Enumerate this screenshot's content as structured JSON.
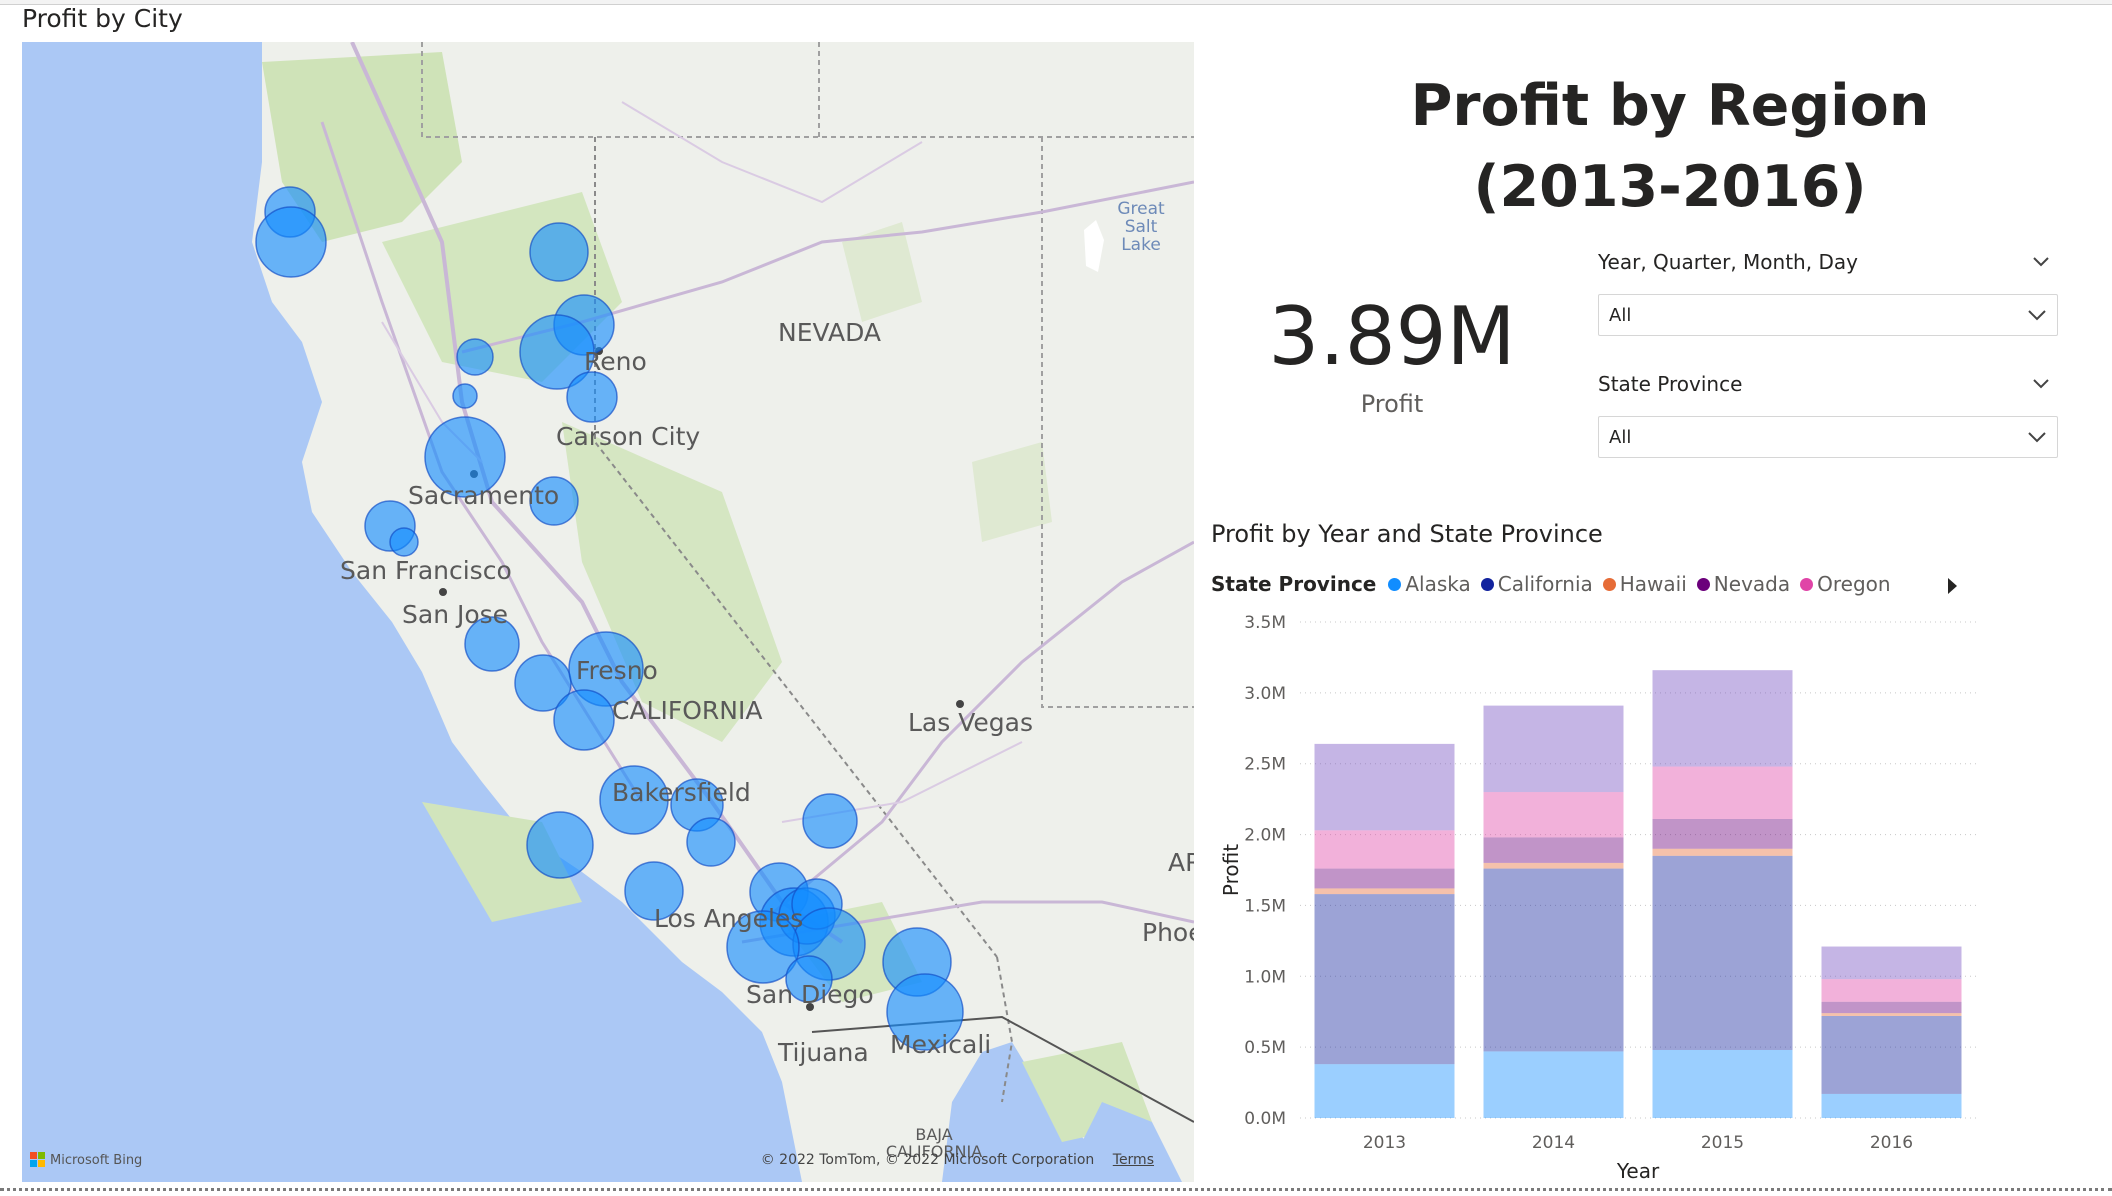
{
  "map": {
    "title": "Profit by City",
    "labels": [
      "NEVADA",
      "Reno",
      "Carson City",
      "Sacramento",
      "San Francisco",
      "San Jose",
      "Fresno",
      "CALIFORNIA",
      "Bakersfield",
      "Las Vegas",
      "Los Angeles",
      "San Diego",
      "Tijuana",
      "Mexicali",
      "Great Salt Lake",
      "BAJA CALIFORNIA",
      "AR",
      "Phoe"
    ],
    "bing_label": "Microsoft Bing",
    "copyright": "© 2022 TomTom, © 2022 Microsoft Corporation",
    "terms": "Terms",
    "bubble_color": "#118dff"
  },
  "header": {
    "title_line1": "Profit by Region",
    "title_line2": "(2013-2016)"
  },
  "kpi": {
    "value": "3.89M",
    "label": "Profit"
  },
  "slicers": [
    {
      "label": "Year, Quarter, Month, Day",
      "value": "All"
    },
    {
      "label": "State Province",
      "value": "All"
    }
  ],
  "chart_data": {
    "type": "bar",
    "stacked": true,
    "title": "Profit by Year and State Province",
    "legend_title": "State Province",
    "xlabel": "Year",
    "ylabel": "Profit",
    "categories": [
      "2013",
      "2014",
      "2015",
      "2016"
    ],
    "ylim": [
      0,
      3500000
    ],
    "yticks": [
      "0.0M",
      "0.5M",
      "1.0M",
      "1.5M",
      "2.0M",
      "2.5M",
      "3.0M",
      "3.5M"
    ],
    "legend_visible": [
      "Alaska",
      "California",
      "Hawaii",
      "Nevada",
      "Oregon"
    ],
    "series": [
      {
        "name": "Alaska",
        "color": "#118dff",
        "values": [
          380000,
          470000,
          480000,
          170000
        ]
      },
      {
        "name": "California",
        "color": "#12239e",
        "values": [
          1200000,
          1290000,
          1370000,
          550000
        ]
      },
      {
        "name": "Hawaii",
        "color": "#e66c37",
        "values": [
          40000,
          40000,
          50000,
          20000
        ]
      },
      {
        "name": "Nevada",
        "color": "#6b007b",
        "values": [
          140000,
          180000,
          210000,
          80000
        ]
      },
      {
        "name": "Oregon",
        "color": "#e044a7",
        "values": [
          270000,
          320000,
          370000,
          160000
        ]
      },
      {
        "name": "",
        "color": "#744ec2",
        "values": [
          610000,
          610000,
          680000,
          230000
        ]
      }
    ]
  }
}
